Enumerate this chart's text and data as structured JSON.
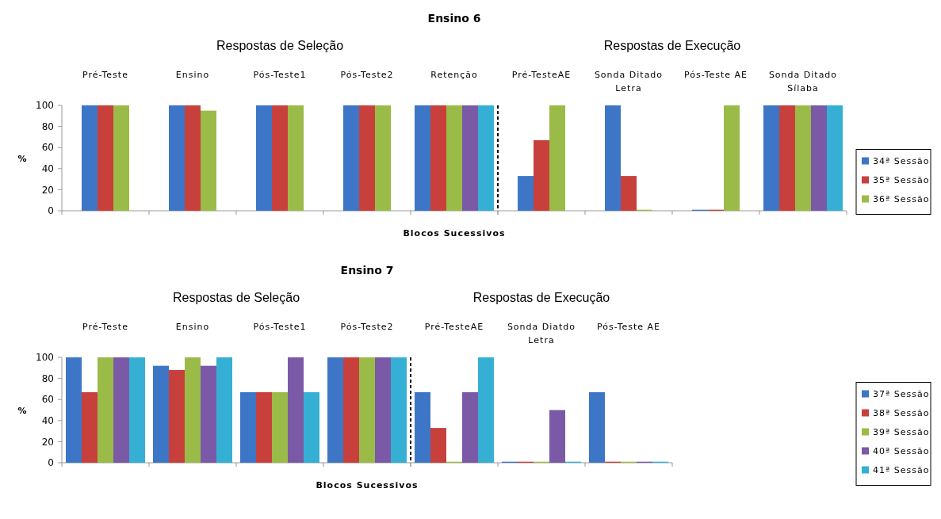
{
  "chart_data": [
    {
      "type": "bar",
      "title": "Ensino 6",
      "subtitle": "Respostas de Seleção",
      "xlabel": "Blocos Sucessivos",
      "ylabel": "%",
      "categories": [
        "Pré-Teste",
        "Ensino",
        "Pós-Teste1",
        "Pós-Teste2",
        "Retenção"
      ],
      "series": [
        {
          "color": "#3d76c6",
          "values": [
            100,
            100,
            100,
            100,
            100
          ]
        },
        {
          "color": "#c8403c",
          "values": [
            100,
            100,
            100,
            100,
            100
          ]
        },
        {
          "color": "#9bbb48",
          "values": [
            100,
            95,
            100,
            100,
            100
          ]
        },
        {
          "color": "#7a5aa6",
          "values": [
            null,
            null,
            null,
            null,
            100
          ]
        },
        {
          "color": "#35b0d4",
          "values": [
            null,
            null,
            null,
            null,
            100
          ]
        }
      ],
      "ylim": [
        0,
        100
      ],
      "yticks": [
        0,
        20,
        40,
        60,
        80,
        100
      ]
    },
    {
      "type": "bar",
      "subtitle": "Respostas de Execução",
      "categories": [
        "Pré-TesteAE",
        "Sonda Ditado Letra",
        "Pós-Teste AE",
        "Sonda Ditado Sílaba"
      ],
      "series": [
        {
          "name": "34ª Sessão",
          "color": "#3d76c6",
          "values": [
            33,
            100,
            1,
            100
          ]
        },
        {
          "name": "35ª Sessão",
          "color": "#c8403c",
          "values": [
            67,
            33,
            1,
            100
          ]
        },
        {
          "name": "36ª Sessão",
          "color": "#9bbb48",
          "values": [
            100,
            1,
            100,
            100
          ]
        },
        {
          "color": "#7a5aa6",
          "values": [
            null,
            null,
            null,
            100
          ]
        },
        {
          "color": "#35b0d4",
          "values": [
            null,
            null,
            null,
            100
          ]
        }
      ],
      "ylim": [
        0,
        100
      ],
      "tick_labels": "x",
      "legend": "right"
    },
    {
      "type": "bar",
      "title": "Ensino 7",
      "subtitle": "Respostas de Seleção",
      "xlabel": "Blocos Sucessivos",
      "ylabel": "%",
      "categories": [
        "Pré-Teste",
        "Ensino",
        "Pós-Teste1",
        "Pós-Teste2"
      ],
      "series": [
        {
          "color": "#3d76c6",
          "values": [
            100,
            92,
            67,
            100
          ]
        },
        {
          "color": "#c8403c",
          "values": [
            67,
            88,
            67,
            100
          ]
        },
        {
          "color": "#9bbb48",
          "values": [
            100,
            100,
            67,
            100
          ]
        },
        {
          "color": "#7a5aa6",
          "values": [
            100,
            92,
            100,
            100
          ]
        },
        {
          "color": "#35b0d4",
          "values": [
            100,
            100,
            67,
            100
          ]
        }
      ],
      "ylim": [
        0,
        100
      ],
      "yticks": [
        0,
        20,
        40,
        60,
        80,
        100
      ]
    },
    {
      "type": "bar",
      "subtitle": "Respostas de Execução",
      "categories": [
        "Pré-TesteAE",
        "Sonda Diatdo Letra",
        "Pós-Teste AE"
      ],
      "series": [
        {
          "name": "37ª Sessão",
          "color": "#3d76c6",
          "values": [
            67,
            1,
            67
          ]
        },
        {
          "name": "38ª Sessão",
          "color": "#c8403c",
          "values": [
            33,
            1,
            1
          ]
        },
        {
          "name": "39ª Sessão",
          "color": "#9bbb48",
          "values": [
            1,
            1,
            1
          ]
        },
        {
          "name": "40ª Sessão",
          "color": "#7a5aa6",
          "values": [
            67,
            50,
            1
          ]
        },
        {
          "name": "41ª Sessão",
          "color": "#35b0d4",
          "values": [
            100,
            1,
            1
          ]
        }
      ],
      "ylim": [
        0,
        100
      ],
      "tick_labels": "x",
      "legend": "right"
    }
  ]
}
